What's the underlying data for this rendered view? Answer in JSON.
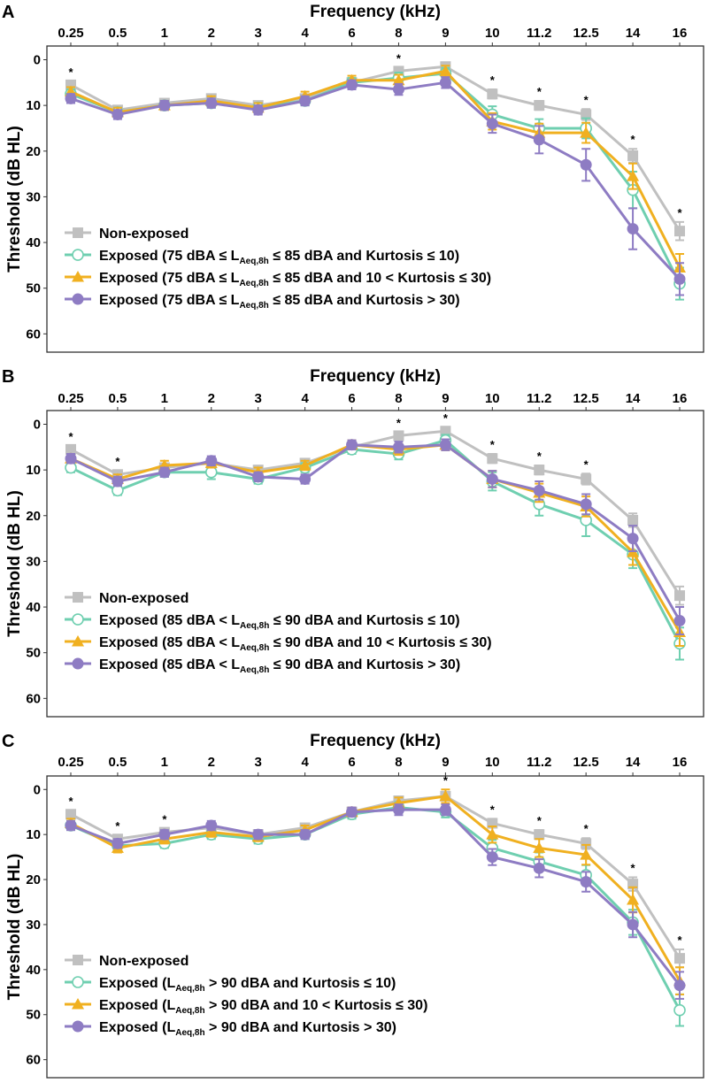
{
  "figure": {
    "x_axis_title": "Frequency (kHz)",
    "y_axis_title": "Threshold (dB HL)",
    "colors": {
      "non_exposed": "#c0c0c0",
      "k_low": "#6fcfb0",
      "k_mid": "#f0b020",
      "k_high": "#8e7cc3"
    }
  },
  "chart_data": [
    {
      "panel": "A",
      "type": "line",
      "xlabel": "Frequency (kHz)",
      "ylabel": "Threshold (dB HL)",
      "x_ticks": [
        "0.25",
        "0.5",
        "1",
        "2",
        "3",
        "4",
        "6",
        "8",
        "9",
        "10",
        "11.2",
        "12.5",
        "14",
        "16"
      ],
      "y_ticks": [
        0,
        10,
        20,
        30,
        40,
        50,
        60
      ],
      "ylim": [
        -3,
        64
      ],
      "y_reversed": true,
      "legend_position": "bottom-left",
      "series": [
        {
          "name": "Non-exposed",
          "key": "non_exposed",
          "marker": "square",
          "values": [
            5.5,
            11,
            9.5,
            8.5,
            10,
            8.5,
            5,
            2.5,
            1.5,
            7.5,
            10,
            12,
            21,
            37.5
          ],
          "errors": [
            0.8,
            0.8,
            0.8,
            0.8,
            0.8,
            0.8,
            0.8,
            0.8,
            0.8,
            1,
            1,
            1.2,
            1.5,
            2
          ]
        },
        {
          "name": "Exposed",
          "legend_pre": "Exposed (75 dBA ≤ L",
          "legend_sub": "Aeq,8h",
          "legend_post": " ≤ 85 dBA and Kurtosis ≤ 10)",
          "key": "k_low",
          "marker": "circle-open",
          "values": [
            7.5,
            11.5,
            10,
            9.5,
            10.5,
            9,
            5,
            4,
            3,
            12,
            15,
            15,
            28.5,
            49
          ],
          "errors": [
            1,
            1,
            1,
            1,
            1,
            1,
            1,
            1.2,
            1.2,
            1.8,
            2,
            2.2,
            4,
            3.5
          ]
        },
        {
          "name": "Exposed",
          "legend_pre": "Exposed (75 dBA ≤ L",
          "legend_sub": "Aeq,8h",
          "legend_post": " ≤ 85 dBA and 10 < Kurtosis ≤ 30)",
          "key": "k_mid",
          "marker": "triangle",
          "values": [
            7,
            11.5,
            10,
            9,
            10.5,
            8,
            4.5,
            4.5,
            2.5,
            13.5,
            16,
            16,
            25.5,
            45.5
          ],
          "errors": [
            1,
            1,
            1,
            1,
            1,
            1,
            1,
            1.2,
            1.2,
            1.8,
            2,
            2.2,
            2.8,
            3
          ]
        },
        {
          "name": "Exposed",
          "legend_pre": "Exposed (75 dBA ≤ L",
          "legend_sub": "Aeq,8h",
          "legend_post": " ≤ 85 dBA and Kurtosis > 30)",
          "key": "k_high",
          "marker": "circle",
          "values": [
            8.5,
            12,
            10,
            9.5,
            11,
            9,
            5.5,
            6.5,
            5,
            14,
            17.5,
            23,
            37,
            48
          ],
          "errors": [
            1,
            1,
            1,
            1,
            1,
            1,
            1,
            1.2,
            1.2,
            2,
            3,
            3.5,
            4.5,
            3.5
          ]
        }
      ],
      "significance": [
        "0.25",
        "8",
        "10",
        "11.2",
        "12.5",
        "14",
        "16"
      ],
      "significance_mark": "*"
    },
    {
      "panel": "B",
      "type": "line",
      "xlabel": "Frequency (kHz)",
      "ylabel": "Threshold (dB HL)",
      "x_ticks": [
        "0.25",
        "0.5",
        "1",
        "2",
        "3",
        "4",
        "6",
        "8",
        "9",
        "10",
        "11.2",
        "12.5",
        "14",
        "16"
      ],
      "y_ticks": [
        0,
        10,
        20,
        30,
        40,
        50,
        60
      ],
      "ylim": [
        -3,
        64
      ],
      "y_reversed": true,
      "legend_position": "bottom-left",
      "series": [
        {
          "name": "Non-exposed",
          "key": "non_exposed",
          "marker": "square",
          "values": [
            5.5,
            11,
            9.5,
            8.5,
            10,
            8.5,
            5,
            2.5,
            1.5,
            7.5,
            10,
            12,
            21,
            37.5
          ],
          "errors": [
            0.8,
            0.8,
            0.8,
            0.8,
            0.8,
            0.8,
            0.8,
            0.8,
            0.8,
            1,
            1,
            1.2,
            1.5,
            2
          ]
        },
        {
          "name": "Exposed",
          "legend_pre": "Exposed (85 dBA < L",
          "legend_sub": "Aeq,8h",
          "legend_post": " ≤ 90 dBA and Kurtosis ≤ 10)",
          "key": "k_low",
          "marker": "circle-open",
          "values": [
            9.5,
            14.5,
            10.5,
            10.5,
            12,
            9.5,
            5.5,
            6.5,
            3.5,
            12.5,
            17.5,
            21,
            28.5,
            48
          ],
          "errors": [
            1,
            1,
            1,
            1.5,
            1,
            1,
            1,
            1.2,
            1.2,
            2,
            2.5,
            3.5,
            3,
            3.5
          ]
        },
        {
          "name": "Exposed",
          "legend_pre": "Exposed (85 dBA < L",
          "legend_sub": "Aeq,8h",
          "legend_post": " ≤ 90 dBA and 10 < Kurtosis ≤ 30)",
          "key": "k_mid",
          "marker": "triangle",
          "values": [
            7.5,
            12,
            9,
            8.5,
            10.5,
            9,
            4.5,
            5.5,
            4.5,
            12,
            15,
            18,
            28,
            45.5
          ],
          "errors": [
            1,
            1,
            1,
            1,
            1,
            1,
            1,
            1.2,
            1.2,
            1.8,
            2,
            2.2,
            2.8,
            3
          ]
        },
        {
          "name": "Exposed",
          "legend_pre": "Exposed (85 dBA < L",
          "legend_sub": "Aeq,8h",
          "legend_post": " ≤ 90 dBA and Kurtosis > 30)",
          "key": "k_high",
          "marker": "circle",
          "values": [
            7.5,
            12.5,
            10.5,
            8,
            11.5,
            12,
            4.5,
            5,
            4.5,
            12,
            14.5,
            17.5,
            25,
            43
          ],
          "errors": [
            1,
            1,
            1,
            1,
            1,
            1,
            1,
            1.2,
            1.2,
            1.8,
            2,
            2.2,
            2.8,
            3
          ]
        }
      ],
      "significance": [
        "0.25",
        "0.5",
        "8",
        "9",
        "10",
        "11.2",
        "12.5"
      ],
      "significance_mark": "*"
    },
    {
      "panel": "C",
      "type": "line",
      "xlabel": "Frequency (kHz)",
      "ylabel": "Threshold (dB HL)",
      "x_ticks": [
        "0.25",
        "0.5",
        "1",
        "2",
        "3",
        "4",
        "6",
        "8",
        "9",
        "10",
        "11.2",
        "12.5",
        "14",
        "16"
      ],
      "y_ticks": [
        0,
        10,
        20,
        30,
        40,
        50,
        60
      ],
      "ylim": [
        -3,
        64
      ],
      "y_reversed": true,
      "legend_position": "bottom-left",
      "series": [
        {
          "name": "Non-exposed",
          "key": "non_exposed",
          "marker": "square",
          "values": [
            5.5,
            11,
            9.5,
            8.5,
            10,
            8.5,
            5,
            2.5,
            1.5,
            7.5,
            10,
            12,
            21,
            37.5
          ],
          "errors": [
            0.8,
            0.8,
            0.8,
            0.8,
            0.8,
            0.8,
            0.8,
            0.8,
            0.8,
            1,
            1,
            1.2,
            1.5,
            2
          ]
        },
        {
          "name": "Exposed",
          "legend_pre": "Exposed (L",
          "legend_sub": "Aeq,8h",
          "legend_post": " > 90 dBA and Kurtosis ≤ 10)",
          "key": "k_low",
          "marker": "circle-open",
          "values": [
            8,
            12.5,
            12,
            10,
            11,
            10,
            5.5,
            4,
            5,
            13,
            16,
            19,
            29.5,
            49
          ],
          "errors": [
            1,
            1,
            1,
            1,
            1,
            1,
            1,
            1.2,
            1.2,
            1.8,
            2,
            2.2,
            2.8,
            3.5
          ]
        },
        {
          "name": "Exposed",
          "legend_pre": "Exposed (L",
          "legend_sub": "Aeq,8h",
          "legend_post": " > 90 dBA and 10 < Kurtosis ≤ 30)",
          "key": "k_mid",
          "marker": "triangle",
          "values": [
            7.5,
            13,
            11,
            9.5,
            10.5,
            9,
            5,
            3,
            1.5,
            10,
            13,
            14.5,
            24.5,
            42.5
          ],
          "errors": [
            1,
            1,
            1,
            1,
            1,
            1,
            1,
            1.2,
            1.5,
            1.8,
            2,
            2.2,
            2.8,
            3
          ]
        },
        {
          "name": "Exposed",
          "legend_pre": "Exposed (L",
          "legend_sub": "Aeq,8h",
          "legend_post": " > 90 dBA and Kurtosis > 30)",
          "key": "k_high",
          "marker": "circle",
          "values": [
            8,
            12,
            10,
            8,
            10,
            10,
            5,
            4.5,
            4.5,
            15,
            17.5,
            20.5,
            30,
            43.5
          ],
          "errors": [
            1,
            1,
            1,
            1,
            1,
            1,
            1,
            1.2,
            1.2,
            1.8,
            2,
            2.2,
            2.8,
            3
          ]
        }
      ],
      "significance": [
        "0.25",
        "0.5",
        "1",
        "9",
        "10",
        "11.2",
        "12.5",
        "14",
        "16"
      ],
      "significance_mark": "*"
    }
  ]
}
